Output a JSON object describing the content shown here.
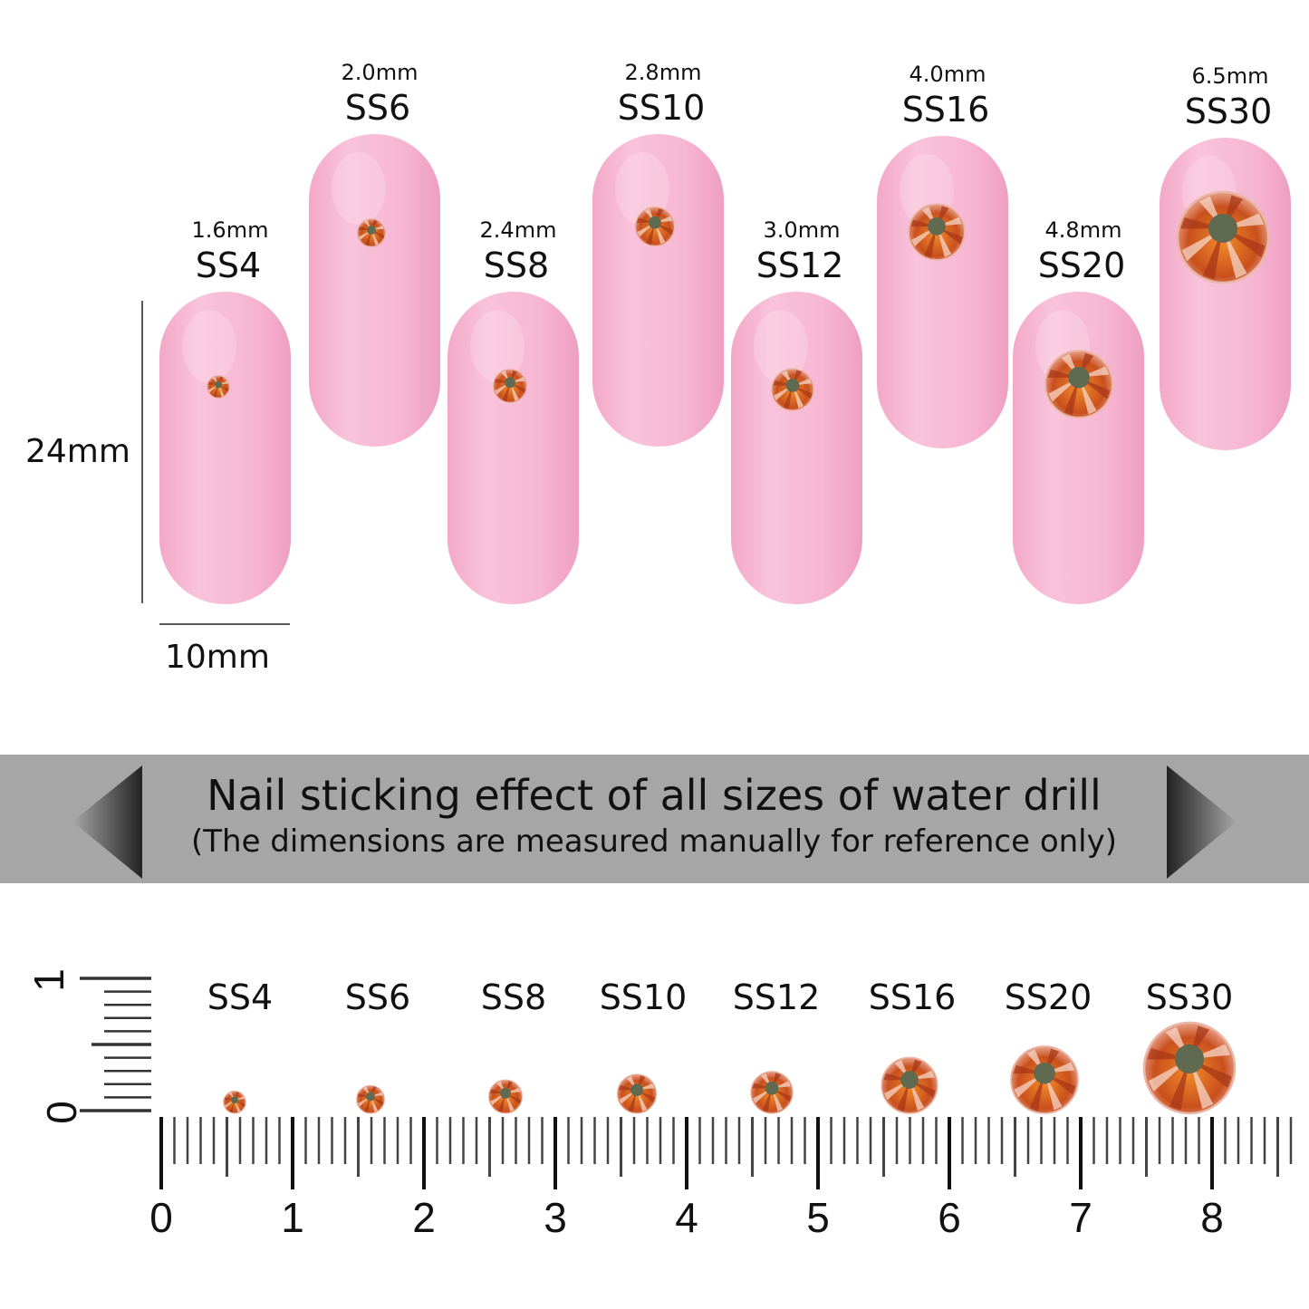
{
  "nails": [
    {
      "label": "SS4",
      "size": "1.6mm",
      "diameter_mm": 1.6
    },
    {
      "label": "SS6",
      "size": "2.0mm",
      "diameter_mm": 2.0
    },
    {
      "label": "SS8",
      "size": "2.4mm",
      "diameter_mm": 2.4
    },
    {
      "label": "SS10",
      "size": "2.8mm",
      "diameter_mm": 2.8
    },
    {
      "label": "SS12",
      "size": "3.0mm",
      "diameter_mm": 3.0
    },
    {
      "label": "SS16",
      "size": "4.0mm",
      "diameter_mm": 4.0
    },
    {
      "label": "SS20",
      "size": "4.8mm",
      "diameter_mm": 4.8
    },
    {
      "label": "SS30",
      "size": "6.5mm",
      "diameter_mm": 6.5
    }
  ],
  "dimensions": {
    "height": "24mm",
    "width": "10mm"
  },
  "banner": {
    "title": "Nail sticking effect of all sizes of water drill",
    "subtitle": "(The dimensions are measured manually for reference only)"
  },
  "ruler": {
    "labels": [
      "0",
      "1",
      "2",
      "3",
      "4",
      "5",
      "6",
      "7",
      "8"
    ],
    "vertical_labels": [
      "0",
      "1"
    ],
    "unit": "cm"
  },
  "colors": {
    "nail": "#f7b8d3",
    "banner": "#a6a6a6",
    "stone": "#d9631e"
  }
}
